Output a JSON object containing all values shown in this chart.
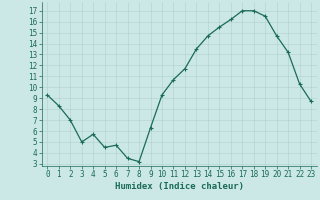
{
  "x": [
    0,
    1,
    2,
    3,
    4,
    5,
    6,
    7,
    8,
    9,
    10,
    11,
    12,
    13,
    14,
    15,
    16,
    17,
    18,
    19,
    20,
    21,
    22,
    23
  ],
  "y": [
    9.3,
    8.3,
    7.0,
    5.0,
    5.7,
    4.5,
    4.7,
    3.5,
    3.2,
    6.3,
    9.3,
    10.7,
    11.7,
    13.5,
    14.7,
    15.5,
    16.2,
    17.0,
    17.0,
    16.5,
    14.7,
    13.2,
    10.3,
    8.7
  ],
  "xlabel": "Humidex (Indice chaleur)",
  "xlim": [
    -0.5,
    23.5
  ],
  "ylim": [
    2.8,
    17.8
  ],
  "yticks": [
    3,
    4,
    5,
    6,
    7,
    8,
    9,
    10,
    11,
    12,
    13,
    14,
    15,
    16,
    17
  ],
  "xtick_labels": [
    "0",
    "1",
    "2",
    "3",
    "4",
    "5",
    "6",
    "7",
    "8",
    "9",
    "10",
    "11",
    "12",
    "13",
    "14",
    "15",
    "16",
    "17",
    "18",
    "19",
    "20",
    "21",
    "22",
    "23"
  ],
  "line_color": "#1a6b5a",
  "marker": "+",
  "bg_color": "#cce8e6",
  "grid_color": "#aed0ce",
  "tick_label_color": "#1a6b5a",
  "xlabel_color": "#1a6b5a",
  "xlabel_fontsize": 6.5,
  "tick_fontsize": 5.5,
  "linewidth": 0.9,
  "markersize": 3.0,
  "markeredgewidth": 0.8
}
